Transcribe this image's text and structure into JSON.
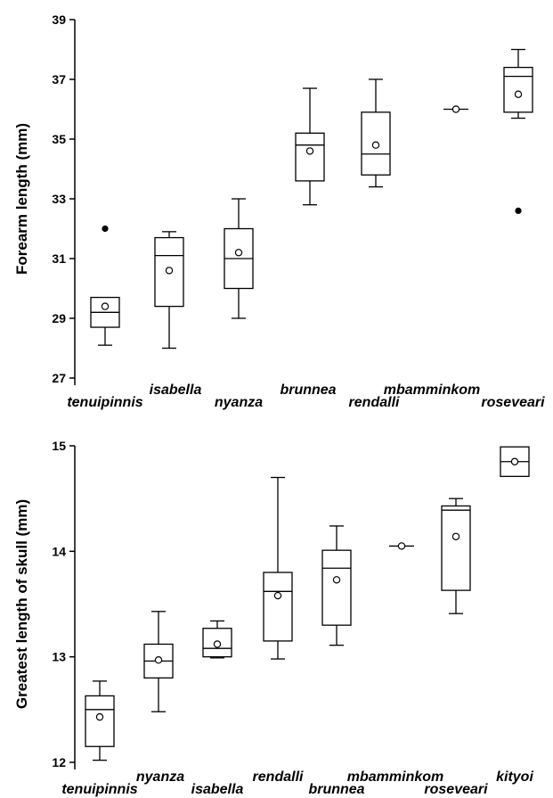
{
  "chart_data": [
    {
      "type": "box",
      "ylabel": "Forearm length (mm)",
      "ylim": [
        27,
        39
      ],
      "yticks": [
        "27",
        "29",
        "31",
        "33",
        "35",
        "37",
        "39"
      ],
      "categories": [
        "tenuipinnis",
        "isabella",
        "nyanza",
        "brunnea",
        "rendalli",
        "mbamminkom",
        "roseveari"
      ],
      "boxes": [
        {
          "whisker_low": 28.1,
          "q1": 28.7,
          "median": 29.2,
          "q3": 29.7,
          "whisker_high": 29.7,
          "mean": 29.4,
          "outliers": [
            32.0
          ]
        },
        {
          "whisker_low": 28.0,
          "q1": 29.4,
          "median": 31.1,
          "q3": 31.7,
          "whisker_high": 31.9,
          "mean": 30.6,
          "outliers": []
        },
        {
          "whisker_low": 29.0,
          "q1": 30.0,
          "median": 31.0,
          "q3": 32.0,
          "whisker_high": 33.0,
          "mean": 31.2,
          "outliers": []
        },
        {
          "whisker_low": 32.8,
          "q1": 33.6,
          "median": 34.8,
          "q3": 35.2,
          "whisker_high": 36.7,
          "mean": 34.6,
          "outliers": []
        },
        {
          "whisker_low": 33.4,
          "q1": 33.8,
          "median": 34.5,
          "q3": 35.9,
          "whisker_high": 37.0,
          "mean": 34.8,
          "outliers": []
        },
        {
          "whisker_low": 36.0,
          "q1": 36.0,
          "median": 36.0,
          "q3": 36.0,
          "whisker_high": 36.0,
          "mean": 36.0,
          "outliers": []
        },
        {
          "whisker_low": 35.7,
          "q1": 35.9,
          "median": 37.1,
          "q3": 37.4,
          "whisker_high": 38.0,
          "mean": 36.5,
          "outliers": [
            32.6
          ]
        }
      ]
    },
    {
      "type": "box",
      "ylabel": "Greatest length of skull (mm)",
      "ylim": [
        12,
        15
      ],
      "yticks": [
        "12",
        "13",
        "14",
        "15"
      ],
      "categories": [
        "tenuipinnis",
        "nyanza",
        "isabella",
        "rendalli",
        "brunnea",
        "mbamminkom",
        "roseveari",
        "kityoi"
      ],
      "boxes": [
        {
          "whisker_low": 12.02,
          "q1": 12.15,
          "median": 12.5,
          "q3": 12.63,
          "whisker_high": 12.77,
          "mean": 12.43,
          "outliers": []
        },
        {
          "whisker_low": 12.48,
          "q1": 12.8,
          "median": 12.96,
          "q3": 13.12,
          "whisker_high": 13.43,
          "mean": 12.97,
          "outliers": []
        },
        {
          "whisker_low": 12.99,
          "q1": 13.0,
          "median": 13.08,
          "q3": 13.27,
          "whisker_high": 13.34,
          "mean": 13.12,
          "outliers": []
        },
        {
          "whisker_low": 12.98,
          "q1": 13.15,
          "median": 13.62,
          "q3": 13.8,
          "whisker_high": 14.7,
          "mean": 13.58,
          "outliers": []
        },
        {
          "whisker_low": 13.11,
          "q1": 13.3,
          "median": 13.84,
          "q3": 14.01,
          "whisker_high": 14.24,
          "mean": 13.73,
          "outliers": []
        },
        {
          "whisker_low": 14.05,
          "q1": 14.05,
          "median": 14.05,
          "q3": 14.05,
          "whisker_high": 14.05,
          "mean": 14.05,
          "outliers": []
        },
        {
          "whisker_low": 13.41,
          "q1": 13.63,
          "median": 14.39,
          "q3": 14.43,
          "whisker_high": 14.5,
          "mean": 14.14,
          "outliers": []
        },
        {
          "whisker_low": 14.71,
          "q1": 14.71,
          "median": 14.85,
          "q3": 14.99,
          "whisker_high": 14.99,
          "mean": 14.85,
          "outliers": []
        }
      ]
    }
  ]
}
